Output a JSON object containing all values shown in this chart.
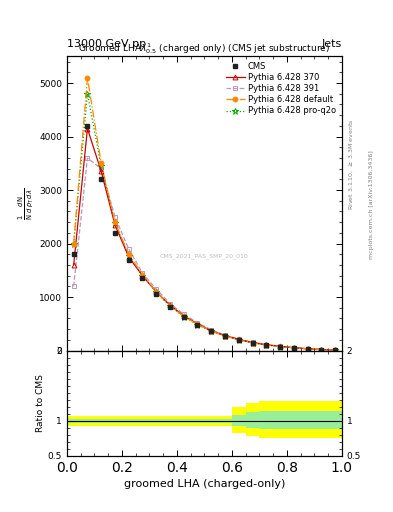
{
  "title_left": "13000 GeV pp",
  "title_right": "Jets",
  "plot_title": "Groomed LHA$\\lambda^{1}_{0.5}$ (charged only) (CMS jet substructure)",
  "xlabel": "groomed LHA (charged-only)",
  "ylabel_ratio": "Ratio to CMS",
  "right_label_top": "Rivet 3.1.10, $\\geq$ 3.3M events",
  "right_label_bottom": "mcplots.cern.ch [arXiv:1306.3436]",
  "watermark": "CMS_2021_PAS_SMP_20_010",
  "x": [
    0.025,
    0.075,
    0.125,
    0.175,
    0.225,
    0.275,
    0.325,
    0.375,
    0.425,
    0.475,
    0.525,
    0.575,
    0.625,
    0.675,
    0.725,
    0.775,
    0.825,
    0.875,
    0.925,
    0.975
  ],
  "cms_y": [
    1800,
    4200,
    3200,
    2200,
    1700,
    1350,
    1050,
    820,
    630,
    480,
    360,
    270,
    200,
    140,
    100,
    70,
    50,
    30,
    20,
    10
  ],
  "py370_y": [
    1600,
    4150,
    3350,
    2350,
    1750,
    1400,
    1100,
    850,
    650,
    500,
    370,
    280,
    210,
    150,
    110,
    80,
    55,
    35,
    20,
    10
  ],
  "py391_y": [
    1200,
    3600,
    3400,
    2500,
    1900,
    1450,
    1150,
    880,
    680,
    520,
    390,
    290,
    215,
    155,
    110,
    80,
    55,
    35,
    20,
    10
  ],
  "pydef_y": [
    2000,
    5100,
    3500,
    2400,
    1800,
    1420,
    1100,
    840,
    640,
    490,
    365,
    270,
    200,
    145,
    105,
    75,
    52,
    33,
    19,
    10
  ],
  "pyq2o_y": [
    2000,
    4800,
    3450,
    2380,
    1770,
    1400,
    1090,
    830,
    635,
    485,
    360,
    270,
    200,
    143,
    103,
    73,
    51,
    32,
    19,
    10
  ],
  "x_edges": [
    0.0,
    0.05,
    0.1,
    0.15,
    0.2,
    0.25,
    0.3,
    0.35,
    0.4,
    0.45,
    0.5,
    0.55,
    0.6,
    0.65,
    0.7,
    0.75,
    0.8,
    0.85,
    0.9,
    0.95,
    1.0
  ],
  "green_band_lo": [
    0.97,
    0.97,
    0.97,
    0.97,
    0.97,
    0.97,
    0.97,
    0.97,
    0.97,
    0.97,
    0.97,
    0.97,
    0.92,
    0.9,
    0.88,
    0.88,
    0.88,
    0.88,
    0.88,
    0.88
  ],
  "green_band_hi": [
    1.03,
    1.03,
    1.03,
    1.03,
    1.03,
    1.03,
    1.03,
    1.03,
    1.03,
    1.03,
    1.03,
    1.03,
    1.08,
    1.12,
    1.14,
    1.14,
    1.14,
    1.14,
    1.14,
    1.14
  ],
  "yellow_band_lo": [
    0.93,
    0.93,
    0.93,
    0.93,
    0.93,
    0.93,
    0.93,
    0.93,
    0.93,
    0.93,
    0.93,
    0.93,
    0.82,
    0.78,
    0.75,
    0.75,
    0.75,
    0.75,
    0.75,
    0.75
  ],
  "yellow_band_hi": [
    1.07,
    1.07,
    1.07,
    1.07,
    1.07,
    1.07,
    1.07,
    1.07,
    1.07,
    1.07,
    1.07,
    1.07,
    1.2,
    1.25,
    1.28,
    1.28,
    1.28,
    1.28,
    1.28,
    1.28
  ],
  "cms_color": "#222222",
  "py370_color": "#cc0000",
  "py391_color": "#bb99bb",
  "pydef_color": "#ff8800",
  "pyq2o_color": "#00aa00",
  "ylim_main_max": 5500,
  "yticks_main": [
    0,
    1000,
    2000,
    3000,
    4000,
    5000
  ],
  "ytick_labels_main": [
    "0",
    "1000",
    "2000",
    "3000",
    "4000",
    "5000"
  ]
}
